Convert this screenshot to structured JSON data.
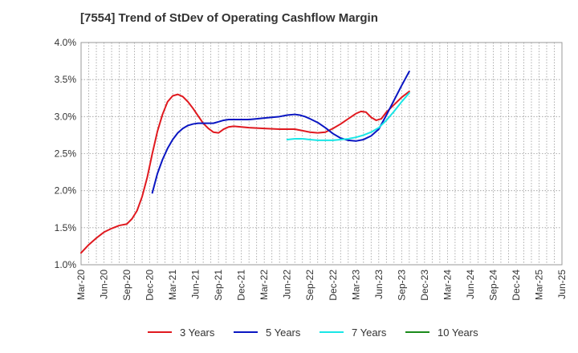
{
  "title": "[7554]  Trend of StDev of Operating Cashflow Margin",
  "chart_data": {
    "type": "line",
    "title": "[7554]  Trend of StDev of Operating Cashflow Margin",
    "xlabel": "",
    "ylabel": "",
    "x_ticks": [
      "Mar-20",
      "Jun-20",
      "Sep-20",
      "Dec-20",
      "Mar-21",
      "Jun-21",
      "Sep-21",
      "Dec-21",
      "Mar-22",
      "Jun-22",
      "Sep-22",
      "Dec-22",
      "Mar-23",
      "Jun-23",
      "Sep-23",
      "Dec-23",
      "Mar-24",
      "Jun-24",
      "Sep-24",
      "Dec-24",
      "Mar-25",
      "Jun-25"
    ],
    "y_ticks": [
      "1.0%",
      "1.5%",
      "2.0%",
      "2.5%",
      "3.0%",
      "3.5%",
      "4.0%"
    ],
    "ylim": [
      1.0,
      4.0
    ],
    "grid": true,
    "legend_position": "bottom",
    "series": [
      {
        "name": "3 Years",
        "color": "#e0191f",
        "points": [
          [
            0,
            1.16
          ],
          [
            1,
            1.27
          ],
          [
            2,
            1.36
          ],
          [
            3,
            1.44
          ],
          [
            4,
            1.49
          ],
          [
            5,
            1.53
          ],
          [
            6,
            1.55
          ],
          [
            6.67,
            1.62
          ],
          [
            7.33,
            1.73
          ],
          [
            8,
            1.92
          ],
          [
            8.67,
            2.18
          ],
          [
            9.33,
            2.5
          ],
          [
            10,
            2.8
          ],
          [
            10.67,
            3.03
          ],
          [
            11.33,
            3.2
          ],
          [
            12,
            3.28
          ],
          [
            12.67,
            3.3
          ],
          [
            13.33,
            3.27
          ],
          [
            14,
            3.2
          ],
          [
            14.67,
            3.11
          ],
          [
            15.33,
            3.01
          ],
          [
            16,
            2.91
          ],
          [
            16.67,
            2.84
          ],
          [
            17.33,
            2.79
          ],
          [
            18,
            2.78
          ],
          [
            18.67,
            2.83
          ],
          [
            19.33,
            2.86
          ],
          [
            20,
            2.87
          ],
          [
            21,
            2.86
          ],
          [
            22,
            2.85
          ],
          [
            24,
            2.84
          ],
          [
            26,
            2.83
          ],
          [
            28,
            2.83
          ],
          [
            29,
            2.81
          ],
          [
            30,
            2.79
          ],
          [
            31,
            2.78
          ],
          [
            32,
            2.79
          ],
          [
            33,
            2.84
          ],
          [
            34,
            2.9
          ],
          [
            35,
            2.97
          ],
          [
            36,
            3.04
          ],
          [
            36.67,
            3.07
          ],
          [
            37.33,
            3.06
          ],
          [
            38,
            2.99
          ],
          [
            38.67,
            2.95
          ],
          [
            39.33,
            2.97
          ],
          [
            40,
            3.06
          ],
          [
            41,
            3.16
          ],
          [
            42,
            3.26
          ],
          [
            43,
            3.34
          ]
        ]
      },
      {
        "name": "5 Years",
        "color": "#0a16c2",
        "points": [
          [
            9.33,
            1.97
          ],
          [
            10,
            2.23
          ],
          [
            10.67,
            2.42
          ],
          [
            11.33,
            2.57
          ],
          [
            12,
            2.69
          ],
          [
            12.67,
            2.78
          ],
          [
            13.33,
            2.84
          ],
          [
            14,
            2.88
          ],
          [
            14.67,
            2.9
          ],
          [
            15.33,
            2.91
          ],
          [
            16,
            2.91
          ],
          [
            16.67,
            2.91
          ],
          [
            17.33,
            2.91
          ],
          [
            18,
            2.93
          ],
          [
            18.67,
            2.95
          ],
          [
            19.33,
            2.96
          ],
          [
            20,
            2.96
          ],
          [
            21,
            2.96
          ],
          [
            22,
            2.96
          ],
          [
            23,
            2.97
          ],
          [
            24,
            2.98
          ],
          [
            25,
            2.99
          ],
          [
            26,
            3.0
          ],
          [
            27,
            3.02
          ],
          [
            28,
            3.03
          ],
          [
            28.67,
            3.02
          ],
          [
            29.33,
            3.0
          ],
          [
            30,
            2.97
          ],
          [
            31,
            2.92
          ],
          [
            32,
            2.85
          ],
          [
            33,
            2.77
          ],
          [
            34,
            2.71
          ],
          [
            35,
            2.68
          ],
          [
            36,
            2.67
          ],
          [
            37,
            2.69
          ],
          [
            38,
            2.74
          ],
          [
            39,
            2.83
          ],
          [
            40,
            3.02
          ],
          [
            41,
            3.22
          ],
          [
            42,
            3.42
          ],
          [
            43,
            3.61
          ]
        ]
      },
      {
        "name": "7 Years",
        "color": "#19e6e6",
        "points": [
          [
            27,
            2.69
          ],
          [
            28,
            2.7
          ],
          [
            29,
            2.7
          ],
          [
            30,
            2.69
          ],
          [
            31,
            2.68
          ],
          [
            32,
            2.68
          ],
          [
            33,
            2.68
          ],
          [
            34,
            2.69
          ],
          [
            35,
            2.7
          ],
          [
            36,
            2.72
          ],
          [
            37,
            2.75
          ],
          [
            38,
            2.79
          ],
          [
            39,
            2.85
          ],
          [
            40,
            2.95
          ],
          [
            41,
            3.07
          ],
          [
            42,
            3.2
          ],
          [
            43,
            3.32
          ]
        ]
      },
      {
        "name": "10 Years",
        "color": "#1a8a1a",
        "points": []
      }
    ]
  }
}
